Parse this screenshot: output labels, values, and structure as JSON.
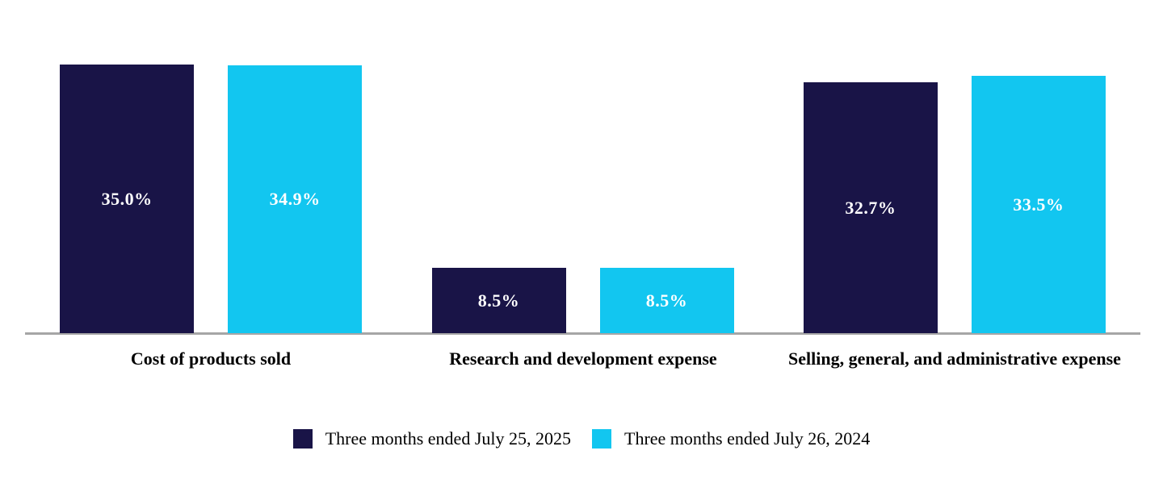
{
  "chart_data": {
    "type": "bar",
    "title": "",
    "xlabel": "",
    "ylabel": "",
    "ylim": [
      0,
      40
    ],
    "grid": false,
    "legend_position": "bottom",
    "background_color": "#FFFFFF",
    "axis_line_color": "#A6A6A6",
    "value_label_color": "#FFFFFF",
    "categories": [
      "Cost of products sold",
      "Research and development expense",
      "Selling, general, and administrative expense"
    ],
    "series": [
      {
        "name": "Three months ended July 25, 2025",
        "color": "#191447",
        "values": [
          35.0,
          8.5,
          32.7
        ],
        "labels": [
          "35.0%",
          "8.5%",
          "32.7%"
        ]
      },
      {
        "name": "Three months ended July 26, 2024",
        "color": "#12C6F0",
        "values": [
          34.9,
          8.5,
          33.5
        ],
        "labels": [
          "34.9%",
          "8.5%",
          "33.5%"
        ]
      }
    ]
  }
}
